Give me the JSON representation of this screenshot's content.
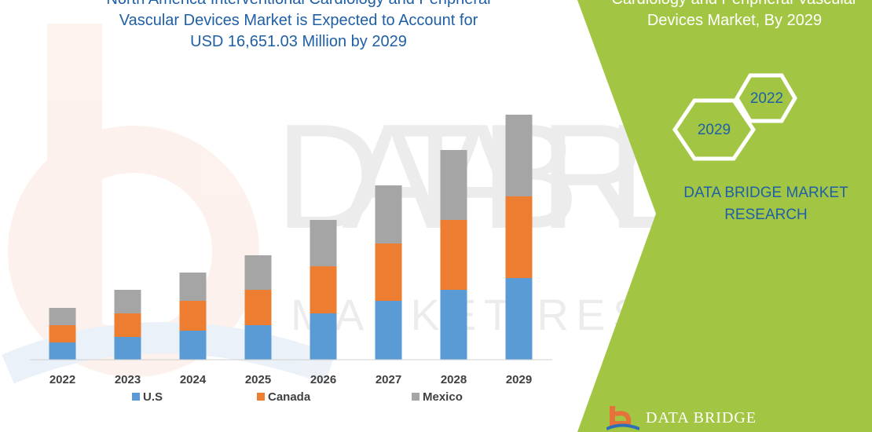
{
  "header": {
    "title_line1": "North America Interventional Cardiology and Peripheral",
    "title_line2": "Vascular Devices Market is Expected to Account for",
    "title_line3": "USD 16,651.03 Million by 2029"
  },
  "side_panel": {
    "title_line1": "Cardiology and Peripheral Vascular",
    "title_line2": "Devices Market, By 2029",
    "hex_year_top": "2022",
    "hex_year_bottom": "2029",
    "brand_line1": "DATA BRIDGE MARKET",
    "brand_line2": "RESEARCH",
    "footer_logo_text": "DATA BRIDGE"
  },
  "watermark": {
    "line1": "DATA BRIDGE",
    "line2": "MARKET RESEARCH"
  },
  "colors": {
    "us": "#5b9bd5",
    "canada": "#ed7d31",
    "mexico": "#a5a5a5",
    "panel_green": "#a2c644",
    "title_blue": "#1f5fa6"
  },
  "chart_data": {
    "type": "bar",
    "stacked": true,
    "categories": [
      "2022",
      "2023",
      "2024",
      "2025",
      "2026",
      "2027",
      "2028",
      "2029"
    ],
    "series": [
      {
        "name": "U.S",
        "values": [
          22,
          29,
          37,
          44,
          59,
          75,
          89,
          104
        ]
      },
      {
        "name": "Canada",
        "values": [
          22,
          30,
          38,
          45,
          60,
          73,
          89,
          104
        ]
      },
      {
        "name": "Mexico",
        "values": [
          22,
          30,
          36,
          44,
          59,
          74,
          89,
          104
        ]
      }
    ],
    "ylim": [
      0,
      330
    ],
    "grid": false,
    "legend_position": "bottom",
    "xlabel": "",
    "ylabel": ""
  }
}
